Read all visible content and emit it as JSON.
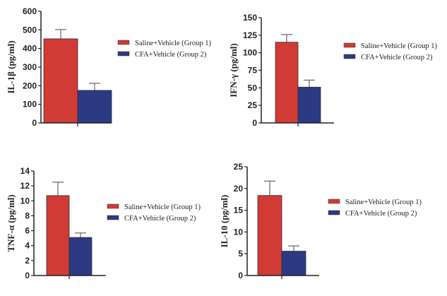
{
  "colors": {
    "group1": "#d13a35",
    "group2": "#2c3a84",
    "axis": "#222222"
  },
  "chart_data": [
    {
      "type": "bar",
      "ylabel": "IL-1β (pg/ml)",
      "ylim": [
        0,
        600
      ],
      "yticks": [
        "0",
        "100",
        "200",
        "300",
        "400",
        "500",
        "600"
      ],
      "series": [
        {
          "name": "Saline+Vehicle (Group 1)",
          "values": [
            452
          ],
          "error": [
            50
          ]
        },
        {
          "name": "CFA+Vehicle (Group 2)",
          "values": [
            175
          ],
          "error": [
            38
          ]
        }
      ],
      "legend": [
        "Saline+Vehicle (Group 1)",
        "CFA+Vehicle (Group 2)"
      ],
      "legend_position": "right"
    },
    {
      "type": "bar",
      "ylabel": "IFN-γ (pg/ml)",
      "ylim": [
        0,
        150
      ],
      "yticks": [
        "0",
        "25",
        "50",
        "75",
        "100",
        "125",
        "150"
      ],
      "series": [
        {
          "name": "Saline+Vehicle (Group 1)",
          "values": [
            115
          ],
          "error": [
            11
          ]
        },
        {
          "name": "CFA+Vehicle (Group 2)",
          "values": [
            51
          ],
          "error": [
            10
          ]
        }
      ],
      "legend": [
        "Saline+Vehicle (Group 1)",
        "CFA+Vehicle (Group 2)"
      ],
      "legend_position": "right"
    },
    {
      "type": "bar",
      "ylabel": "TNF-α (pg/ml)",
      "ylim": [
        0,
        14
      ],
      "yticks": [
        "0",
        "2",
        "4",
        "6",
        "8",
        "10",
        "12",
        "14"
      ],
      "series": [
        {
          "name": "Saline+Vehicle (Group 1)",
          "values": [
            10.7
          ],
          "error": [
            1.8
          ]
        },
        {
          "name": "CFA+Vehicle (Group 2)",
          "values": [
            5.1
          ],
          "error": [
            0.6
          ]
        }
      ],
      "legend": [
        "Saline+Vehicle (Group 1)",
        "CFA+Vehicle (Group 2)"
      ],
      "legend_position": "right"
    },
    {
      "type": "bar",
      "ylabel": "IL-10 (pg/ml)",
      "ylim": [
        0,
        25
      ],
      "yticks": [
        "0",
        "5",
        "10",
        "15",
        "20",
        "25"
      ],
      "series": [
        {
          "name": "Saline+Vehicle (Group 1)",
          "values": [
            18.4
          ],
          "error": [
            3.3
          ]
        },
        {
          "name": "CFA+Vehicle (Group 2)",
          "values": [
            5.6
          ],
          "error": [
            1.2
          ]
        }
      ],
      "legend": [
        "Saline+Vehicle (Group 1)",
        "CFA+Vehicle (Group 2)"
      ],
      "legend_position": "right"
    }
  ]
}
